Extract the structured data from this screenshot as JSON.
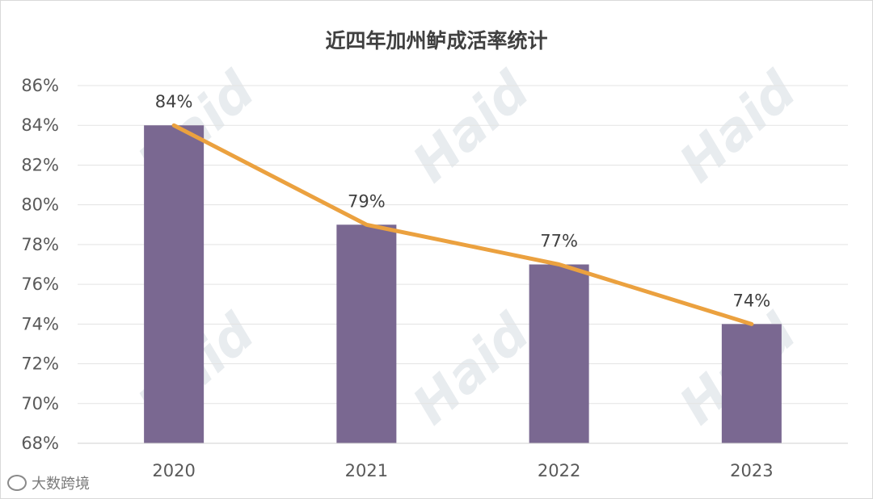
{
  "chart_data": {
    "type": "bar",
    "title": "近四年加州鲈成活率统计",
    "categories": [
      "2020",
      "2021",
      "2022",
      "2023"
    ],
    "values": [
      84,
      79,
      77,
      74
    ],
    "data_labels": [
      "84%",
      "79%",
      "77%",
      "74%"
    ],
    "ylim": [
      68,
      86
    ],
    "y_ticks": [
      "68%",
      "70%",
      "72%",
      "74%",
      "76%",
      "78%",
      "80%",
      "82%",
      "84%",
      "86%"
    ],
    "y_tick_values": [
      68,
      70,
      72,
      74,
      76,
      78,
      80,
      82,
      84,
      86
    ],
    "grid": true,
    "overlay_line": true,
    "colors": {
      "bar": "#7a6891",
      "line": "#eba13f",
      "grid": "#e3e3e3"
    }
  },
  "watermark": {
    "text": "Haid"
  },
  "brand": {
    "text": "大数跨境",
    "icon": "weibo-like-icon"
  }
}
